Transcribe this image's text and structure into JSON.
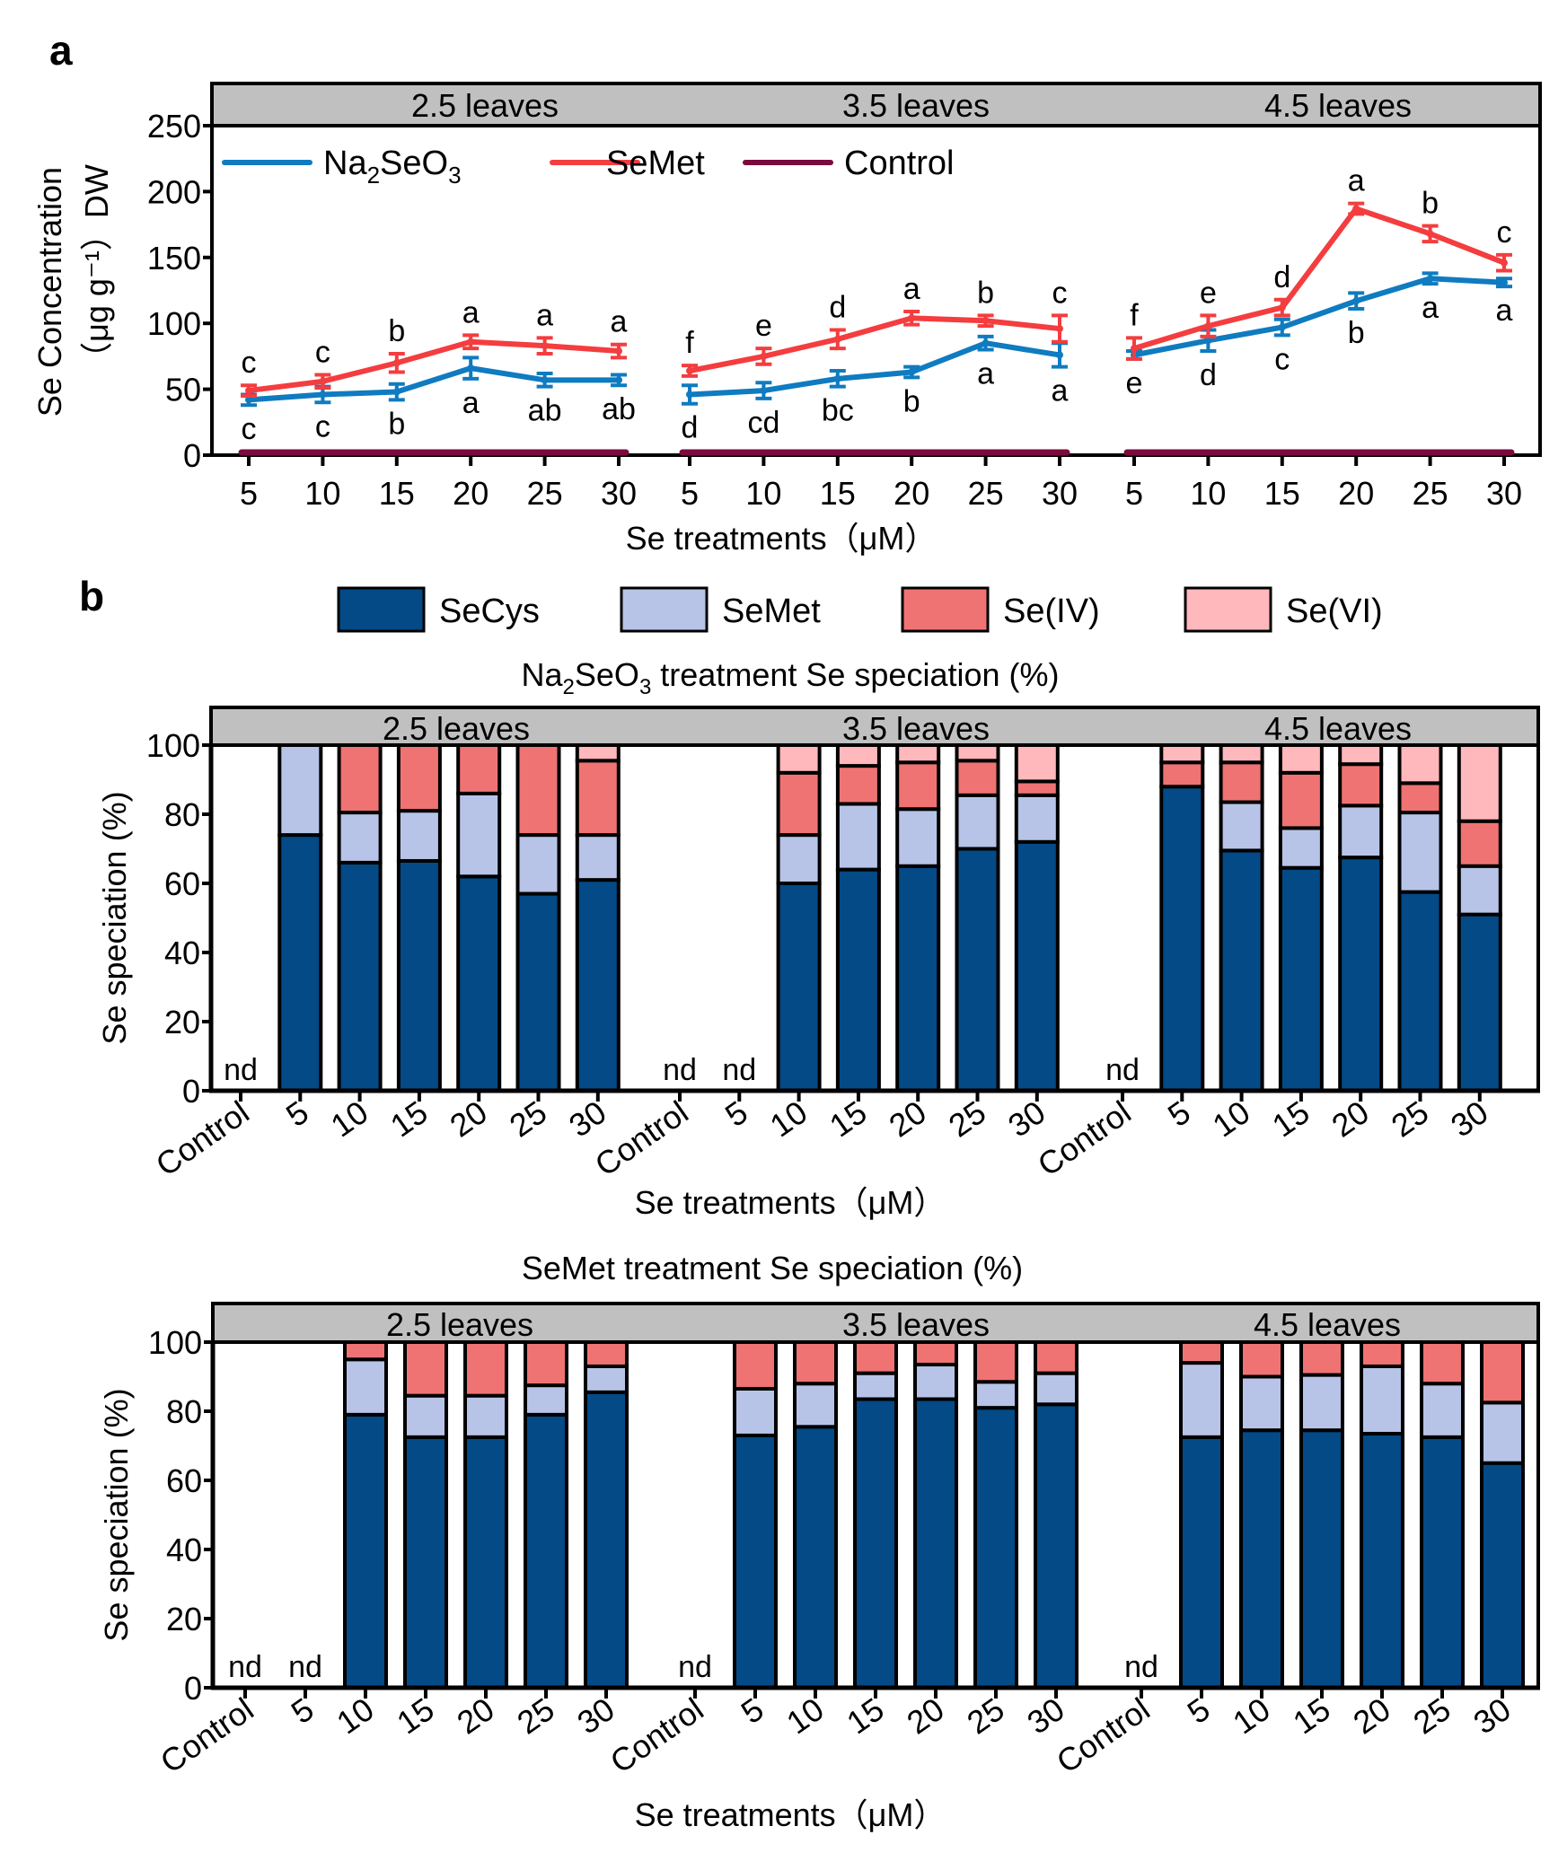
{
  "figure": {
    "panel_a_label": "a",
    "panel_b_label": "b"
  },
  "chart_data": [
    {
      "id": "a",
      "type": "line",
      "title": "",
      "xlabel": "Se treatments（μM）",
      "ylabel_line1": "Se Concentration",
      "ylabel_line2": "（μg g⁻¹）DW",
      "ylim": [
        0,
        250
      ],
      "yticks": [
        0,
        50,
        100,
        150,
        200,
        250
      ],
      "grid": false,
      "legend_position": "top-left",
      "facets": [
        "2.5 leaves",
        "3.5 leaves",
        "4.5 leaves"
      ],
      "x": [
        5,
        10,
        15,
        20,
        25,
        30
      ],
      "series": [
        {
          "name": "Na₂SeO₃",
          "color": "#0f7bc0",
          "values": [
            [
              42,
              46,
              48,
              66,
              57,
              57
            ],
            [
              46,
              49,
              58,
              63,
              85,
              76
            ],
            [
              76,
              87,
              97,
              117,
              134,
              131
            ]
          ],
          "errors": [
            [
              4,
              6,
              6,
              8,
              5,
              4
            ],
            [
              7,
              6,
              6,
              4,
              5,
              9
            ],
            [
              3,
              8,
              6,
              6,
              4,
              3
            ]
          ],
          "letters": [
            [
              "c",
              "c",
              "b",
              "a",
              "ab",
              "ab"
            ],
            [
              "d",
              "cd",
              "bc",
              "b",
              "a",
              "a"
            ],
            [
              "e",
              "d",
              "c",
              "b",
              "a",
              "a"
            ]
          ],
          "letter_position": "below"
        },
        {
          "name": "SeMet",
          "color": "#f43d3f",
          "values": [
            [
              49,
              56,
              70,
              86,
              83,
              79
            ],
            [
              64,
              75,
              88,
              104,
              102,
              96
            ],
            [
              81,
              98,
              112,
              187,
              168,
              146
            ]
          ],
          "errors": [
            [
              4,
              5,
              7,
              5,
              6,
              5
            ],
            [
              4,
              6,
              7,
              5,
              4,
              10
            ],
            [
              8,
              8,
              6,
              4,
              6,
              6
            ]
          ],
          "letters": [
            [
              "c",
              "c",
              "b",
              "a",
              "a",
              "a"
            ],
            [
              "f",
              "e",
              "d",
              "a",
              "b",
              "c"
            ],
            [
              "f",
              "e",
              "d",
              "a",
              "b",
              "c"
            ]
          ],
          "letter_position": "above"
        },
        {
          "name": "Control",
          "color": "#7a0b3c",
          "values": [
            [
              0,
              0,
              0,
              0,
              0,
              0
            ],
            [
              0,
              0,
              0,
              0,
              0,
              0
            ],
            [
              0,
              0,
              0,
              0,
              0,
              0
            ]
          ]
        }
      ]
    },
    {
      "id": "b-na2seo3",
      "type": "bar",
      "stacked": true,
      "title": "Na₂SeO₃ treatment  Se speciation (%)",
      "xlabel": "Se treatments（μM）",
      "ylabel": "Se speciation (%)",
      "ylim": [
        0,
        100
      ],
      "yticks": [
        0,
        20,
        40,
        60,
        80,
        100
      ],
      "grid": false,
      "legend_position": "top",
      "facets": [
        "2.5 leaves",
        "3.5 leaves",
        "4.5 leaves"
      ],
      "categories": [
        "Control",
        "5",
        "10",
        "15",
        "20",
        "25",
        "30"
      ],
      "series_names": [
        "SeCys",
        "SeMet",
        "Se(IV)",
        "Se(VI)"
      ],
      "values": [
        [
          null,
          [
            74,
            26,
            0,
            0
          ],
          [
            66,
            14.5,
            19.5,
            0
          ],
          [
            66.5,
            14.5,
            19,
            0
          ],
          [
            62,
            24,
            14,
            0
          ],
          [
            57,
            17,
            26,
            0
          ],
          [
            61,
            13,
            21.5,
            4.5
          ]
        ],
        [
          null,
          null,
          [
            60,
            14,
            18,
            8
          ],
          [
            64,
            19,
            11,
            6
          ],
          [
            65,
            16.5,
            13.5,
            5
          ],
          [
            70,
            15.5,
            10,
            4.5
          ],
          [
            72,
            13.5,
            4,
            10.5
          ]
        ],
        [
          null,
          [
            88,
            0,
            7,
            5
          ],
          [
            69.5,
            14,
            11.5,
            5
          ],
          [
            64.5,
            11.5,
            16,
            8
          ],
          [
            67.5,
            15,
            12,
            5.5
          ],
          [
            57.5,
            23,
            8.5,
            11
          ],
          [
            51,
            14,
            13,
            22
          ]
        ]
      ],
      "nd_label": "nd"
    },
    {
      "id": "b-semet",
      "type": "bar",
      "stacked": true,
      "title": "SeMet treatment  Se speciation (%)",
      "xlabel": "Se treatments（μM）",
      "ylabel": "Se speciation (%)",
      "ylim": [
        0,
        100
      ],
      "yticks": [
        0,
        20,
        40,
        60,
        80,
        100
      ],
      "grid": false,
      "facets": [
        "2.5 leaves",
        "3.5 leaves",
        "4.5 leaves"
      ],
      "categories": [
        "Control",
        "5",
        "10",
        "15",
        "20",
        "25",
        "30"
      ],
      "series_names": [
        "SeCys",
        "SeMet",
        "Se(IV)",
        "Se(VI)"
      ],
      "values": [
        [
          null,
          null,
          [
            79,
            16,
            5,
            0
          ],
          [
            72.5,
            12,
            15.5,
            0
          ],
          [
            72.5,
            12,
            15.5,
            0
          ],
          [
            79,
            8.5,
            12.5,
            0
          ],
          [
            85.5,
            7.5,
            7,
            0
          ]
        ],
        [
          null,
          [
            73,
            13.5,
            13.5,
            0
          ],
          [
            75.5,
            12.5,
            12,
            0
          ],
          [
            83.5,
            7.5,
            9,
            0
          ],
          [
            83.5,
            10,
            6.5,
            0
          ],
          [
            81,
            7.5,
            11.5,
            0
          ],
          [
            82,
            9,
            9,
            0
          ]
        ],
        [
          null,
          [
            72.5,
            21.5,
            6,
            0
          ],
          [
            74.5,
            15.5,
            10,
            0
          ],
          [
            74.5,
            16,
            9.5,
            0
          ],
          [
            73.5,
            19.5,
            7,
            0
          ],
          [
            72.5,
            15.5,
            12,
            0
          ],
          [
            65,
            17.5,
            17.5,
            0
          ]
        ]
      ],
      "nd_label": "nd"
    }
  ],
  "legend_b": [
    {
      "label": "SeCys",
      "color": "#034a86"
    },
    {
      "label": "SeMet",
      "color": "#b7c4e8"
    },
    {
      "label": "Se(IV)",
      "color": "#ef7372"
    },
    {
      "label": "Se(VI)",
      "color": "#ffb8bb"
    }
  ],
  "colors": {
    "strip_bg": "#c0c0c0",
    "axis": "#000000"
  }
}
